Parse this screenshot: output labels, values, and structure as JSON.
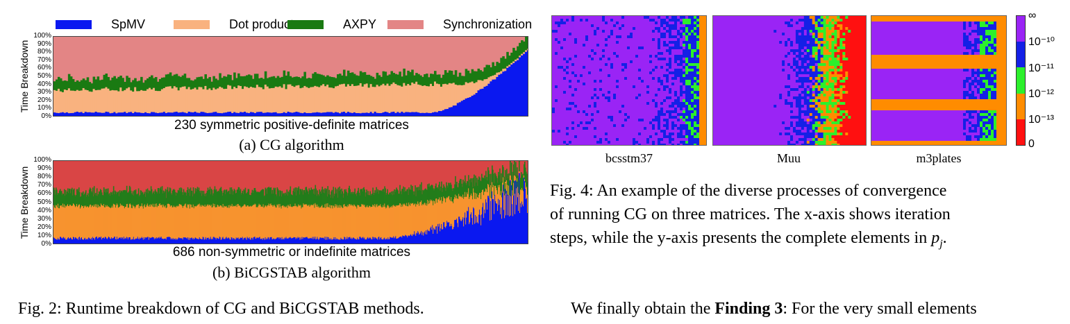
{
  "legend": [
    {
      "label": "SpMV",
      "color": "#0a18f0"
    },
    {
      "label": "Dot product",
      "color": "#f9b27f"
    },
    {
      "label": "AXPY",
      "color": "#1a7a12"
    },
    {
      "label": "Synchronization",
      "color": "#e38585"
    }
  ],
  "plot_a": {
    "ylabel": "Time Breakdown",
    "yticks": [
      "100%",
      "90%",
      "80%",
      "70%",
      "60%",
      "50%",
      "40%",
      "30%",
      "20%",
      "10%",
      "0%"
    ],
    "xlabel": "230 symmetric positive-definite matrices",
    "caption": "(a) CG algorithm"
  },
  "plot_b": {
    "ylabel": "Time Breakdown",
    "yticks": [
      "100%",
      "90%",
      "80%",
      "70%",
      "60%",
      "50%",
      "40%",
      "30%",
      "20%",
      "10%",
      "0%"
    ],
    "xlabel": "686 non-symmetric or indefinite matrices",
    "caption": "(b) BiCGSTAB algorithm"
  },
  "fig2_caption": "Fig. 2: Runtime breakdown of CG and BiCGSTAB methods.",
  "heatmaps": {
    "labels": [
      "bcsstm37",
      "Muu",
      "m3plates"
    ],
    "colorbar_ticks": [
      "∞",
      "10⁻¹⁰",
      "10⁻¹¹",
      "10⁻¹²",
      "10⁻¹³",
      "0"
    ],
    "colorbar_colors": [
      "#9a24f5",
      "#1420e6",
      "#2cf02c",
      "#ff8c00",
      "#ff1010"
    ]
  },
  "fig4_caption": {
    "line1": "Fig. 4: An example of the diverse processes of convergence",
    "line2": "of running CG on three matrices. The x-axis shows iteration",
    "line3_pre": "steps, while the y-axis presents the complete elements in ",
    "line3_math": "p",
    "line3_sub": "j",
    "line3_post": "."
  },
  "finding": {
    "pre": "We finally obtain the ",
    "bold": "Finding 3",
    "post": ": For the very small elements"
  }
}
